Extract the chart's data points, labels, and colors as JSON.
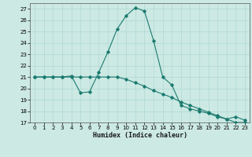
{
  "xlabel": "Humidex (Indice chaleur)",
  "background_color": "#cce9e4",
  "grid_color": "#b0d8d2",
  "line_color": "#1a7a6e",
  "xlim": [
    -0.5,
    23.5
  ],
  "ylim": [
    17,
    27.5
  ],
  "yticks": [
    17,
    18,
    19,
    20,
    21,
    22,
    23,
    24,
    25,
    26,
    27
  ],
  "xticks": [
    0,
    1,
    2,
    3,
    4,
    5,
    6,
    7,
    8,
    9,
    10,
    11,
    12,
    13,
    14,
    15,
    16,
    17,
    18,
    19,
    20,
    21,
    22,
    23
  ],
  "curve1_x": [
    0,
    1,
    2,
    3,
    4,
    5,
    6,
    7,
    8,
    9,
    10,
    11,
    12,
    13,
    14,
    15,
    16,
    17,
    18,
    19,
    20,
    21,
    22,
    23
  ],
  "curve1_y": [
    21.0,
    21.0,
    21.0,
    21.0,
    21.1,
    19.6,
    19.7,
    21.4,
    23.2,
    25.2,
    26.4,
    27.1,
    26.8,
    24.2,
    21.0,
    20.3,
    18.5,
    18.2,
    18.0,
    17.8,
    17.5,
    17.3,
    17.5,
    17.2
  ],
  "curve2_x": [
    0,
    1,
    2,
    3,
    4,
    5,
    6,
    7,
    8,
    9,
    10,
    11,
    12,
    13,
    14,
    15,
    16,
    17,
    18,
    19,
    20,
    21,
    22,
    23
  ],
  "curve2_y": [
    21.0,
    21.0,
    21.0,
    21.0,
    21.0,
    21.0,
    21.0,
    21.0,
    21.0,
    21.0,
    20.8,
    20.5,
    20.2,
    19.8,
    19.5,
    19.2,
    18.8,
    18.5,
    18.2,
    17.9,
    17.6,
    17.3,
    17.0,
    17.0
  ]
}
